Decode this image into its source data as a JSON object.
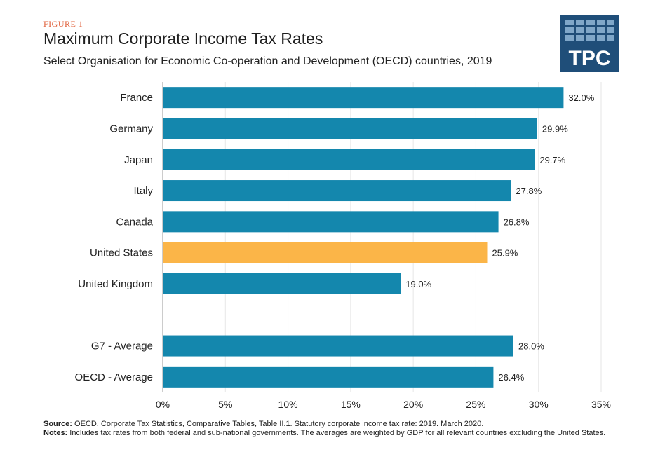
{
  "header": {
    "figure_label": "FIGURE 1",
    "title": "Maximum Corporate Income Tax Rates",
    "subtitle": "Select Organisation for Economic Co-operation and Development (OECD) countries, 2019"
  },
  "logo": {
    "text": "TPC",
    "color": "#1f4e79"
  },
  "chart_data": {
    "type": "bar",
    "orientation": "horizontal",
    "categories": [
      "France",
      "Germany",
      "Japan",
      "Italy",
      "Canada",
      "United States",
      "United Kingdom",
      "",
      "G7 - Average",
      "OECD - Average"
    ],
    "values": [
      32.0,
      29.9,
      29.7,
      27.8,
      26.8,
      25.9,
      19.0,
      null,
      28.0,
      26.4
    ],
    "data_labels": [
      "32.0%",
      "29.9%",
      "29.7%",
      "27.8%",
      "26.8%",
      "25.9%",
      "19.0%",
      "",
      "28.0%",
      "26.4%"
    ],
    "highlight_category": "United States",
    "colors": {
      "default": "#1487ad",
      "highlight": "#fbb548"
    },
    "xlim": [
      0,
      35
    ],
    "x_ticks": [
      0,
      5,
      10,
      15,
      20,
      25,
      30,
      35
    ],
    "x_tick_labels": [
      "0%",
      "5%",
      "10%",
      "15%",
      "20%",
      "25%",
      "30%",
      "35%"
    ],
    "grid": true
  },
  "footer": {
    "source_label": "Source:",
    "source_text": "OECD. Corporate Tax Statistics, Comparative Tables, Table II.1. Statutory corporate income tax rate: 2019. March 2020.",
    "notes_label": "Notes:",
    "notes_text": "Includes tax rates from both federal and sub-national governments. The averages are weighted by GDP for all relevant countries excluding the United States."
  }
}
